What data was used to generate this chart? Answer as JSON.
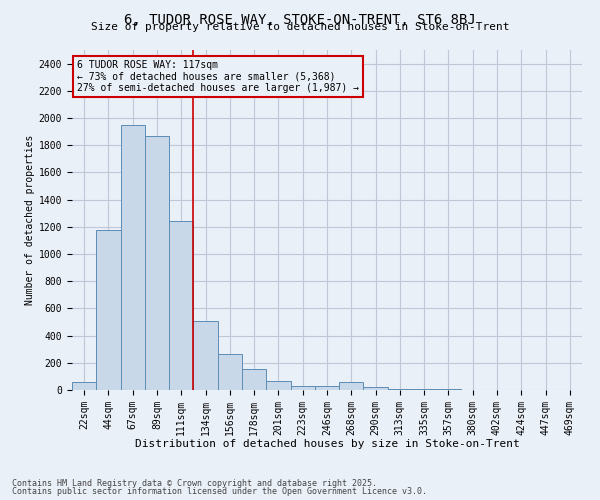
{
  "title_line1": "6, TUDOR ROSE WAY, STOKE-ON-TRENT, ST6 8BJ",
  "title_line2": "Size of property relative to detached houses in Stoke-on-Trent",
  "xlabel": "Distribution of detached houses by size in Stoke-on-Trent",
  "ylabel": "Number of detached properties",
  "annotation_line1": "6 TUDOR ROSE WAY: 117sqm",
  "annotation_line2": "← 73% of detached houses are smaller (5,368)",
  "annotation_line3": "27% of semi-detached houses are larger (1,987) →",
  "footnote1": "Contains HM Land Registry data © Crown copyright and database right 2025.",
  "footnote2": "Contains public sector information licensed under the Open Government Licence v3.0.",
  "bar_color": "#c8d8e8",
  "bar_edge_color": "#5b8db8",
  "grid_color": "#c0c8d8",
  "background_color": "#eaf0f8",
  "vline_color": "#cc0000",
  "annotation_box_color": "#cc0000",
  "categories": [
    "22sqm",
    "44sqm",
    "67sqm",
    "89sqm",
    "111sqm",
    "134sqm",
    "156sqm",
    "178sqm",
    "201sqm",
    "223sqm",
    "246sqm",
    "268sqm",
    "290sqm",
    "313sqm",
    "335sqm",
    "357sqm",
    "380sqm",
    "402sqm",
    "424sqm",
    "447sqm",
    "469sqm"
  ],
  "values": [
    60,
    1175,
    1950,
    1870,
    1240,
    510,
    265,
    155,
    65,
    30,
    30,
    60,
    20,
    10,
    5,
    5,
    0,
    0,
    0,
    0,
    0
  ],
  "ylim": [
    0,
    2500
  ],
  "yticks": [
    0,
    200,
    400,
    600,
    800,
    1000,
    1200,
    1400,
    1600,
    1800,
    2000,
    2200,
    2400
  ],
  "vline_x": 4.5,
  "title_fontsize": 10,
  "subtitle_fontsize": 8,
  "xlabel_fontsize": 8,
  "ylabel_fontsize": 7,
  "tick_fontsize": 7,
  "annot_fontsize": 7,
  "footnote_fontsize": 6
}
